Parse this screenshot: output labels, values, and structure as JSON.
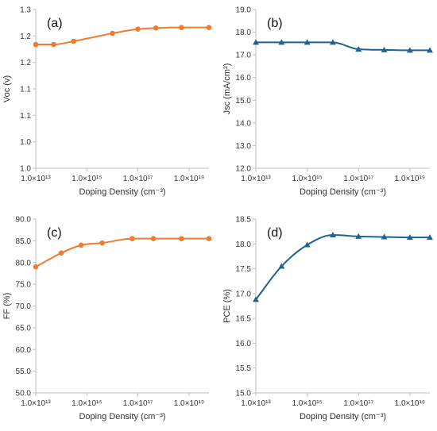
{
  "chart_data": [
    {
      "type": "line",
      "panel_label": "(a)",
      "ylabel": "Voc (v)",
      "xlabel": "Doping Density (cm⁻³)",
      "xscale": "log",
      "xlim": [
        10000000000000.0,
        6e+19
      ],
      "xticks": [
        10000000000000.0,
        1000000000000000.0,
        1e+17,
        1e+19
      ],
      "xtick_labels": [
        "1.0×10¹³",
        "1.0×10¹⁵",
        "1.0×10¹⁷",
        "1.0×10¹⁹"
      ],
      "ylim": [
        1.0,
        1.3
      ],
      "yticks": [
        1.0,
        1.05,
        1.1,
        1.15,
        1.2,
        1.25,
        1.3
      ],
      "ytick_labels": [
        "1.0",
        "1.0",
        "1.1",
        "1.1",
        "1.2",
        "1.2",
        "1.3"
      ],
      "marker": "circle",
      "color": "#ED7D31",
      "grid": false,
      "series": [
        {
          "x": [
            10000000000000.0,
            50000000000000.0,
            300000000000000.0,
            1e+16,
            1e+17,
            5e+17,
            5e+18,
            6e+19
          ],
          "y": [
            1.234,
            1.234,
            1.24,
            1.255,
            1.263,
            1.265,
            1.266,
            1.266
          ]
        }
      ]
    },
    {
      "type": "line",
      "panel_label": "(b)",
      "ylabel": "Jsc (mA/cm²)",
      "xlabel": "Doping Density (cm⁻³)",
      "xscale": "log",
      "xlim": [
        10000000000000.0,
        6e+19
      ],
      "xticks": [
        10000000000000.0,
        1000000000000000.0,
        1e+17,
        1e+19
      ],
      "xtick_labels": [
        "1.0×10¹³",
        "1.0×10¹⁵",
        "1.0×10¹⁷",
        "1.0×10¹⁹"
      ],
      "ylim": [
        12.0,
        19.0
      ],
      "yticks": [
        12,
        13,
        14,
        15,
        16,
        17,
        18,
        19
      ],
      "ytick_labels": [
        "12.0",
        "13.0",
        "14.0",
        "15.0",
        "16.0",
        "17.0",
        "18.0",
        "19.0"
      ],
      "marker": "triangle",
      "color": "#1F6391",
      "grid": false,
      "series": [
        {
          "x": [
            10000000000000.0,
            100000000000000.0,
            1000000000000000.0,
            1e+16,
            1e+17,
            1e+18,
            1e+19,
            6e+19
          ],
          "y": [
            17.55,
            17.55,
            17.55,
            17.55,
            17.25,
            17.22,
            17.2,
            17.2
          ]
        }
      ]
    },
    {
      "type": "line",
      "panel_label": "(c)",
      "ylabel": "FF (%)",
      "xlabel": "Doping Density (cm⁻³)",
      "xscale": "log",
      "xlim": [
        10000000000000.0,
        6e+19
      ],
      "xticks": [
        10000000000000.0,
        1000000000000000.0,
        1e+17,
        1e+19
      ],
      "xtick_labels": [
        "1.0×10¹³",
        "1.0×10¹⁵",
        "1.0×10¹⁷",
        "1.0×10¹⁹"
      ],
      "ylim": [
        50,
        90
      ],
      "yticks": [
        50,
        55,
        60,
        65,
        70,
        75,
        80,
        85,
        90
      ],
      "ytick_labels": [
        "50.0",
        "55.0",
        "60.0",
        "65.0",
        "70.0",
        "75.0",
        "80.0",
        "85.0",
        "90.0"
      ],
      "marker": "circle",
      "color": "#ED7D31",
      "grid": false,
      "series": [
        {
          "x": [
            10000000000000.0,
            100000000000000.0,
            600000000000000.0,
            4000000000000000.0,
            6e+16,
            4e+17,
            5e+18,
            6e+19
          ],
          "y": [
            79.0,
            82.2,
            84.0,
            84.5,
            85.5,
            85.5,
            85.5,
            85.5
          ]
        }
      ]
    },
    {
      "type": "line",
      "panel_label": "(d)",
      "ylabel": "PCE (%)",
      "xlabel": "Doping Density (cm⁻³)",
      "xscale": "log",
      "xlim": [
        10000000000000.0,
        6e+19
      ],
      "xticks": [
        10000000000000.0,
        1000000000000000.0,
        1e+17,
        1e+19
      ],
      "xtick_labels": [
        "1.0×10¹³",
        "1.0×10¹⁵",
        "1.0×10¹⁷",
        "1.0×10¹⁹"
      ],
      "ylim": [
        15.0,
        18.5
      ],
      "yticks": [
        15.0,
        15.5,
        16.0,
        16.5,
        17.0,
        17.5,
        18.0,
        18.5
      ],
      "ytick_labels": [
        "15.0",
        "15.5",
        "16.0",
        "16.5",
        "17.0",
        "17.5",
        "18.0",
        "18.5"
      ],
      "marker": "triangle",
      "color": "#1F6391",
      "grid": false,
      "series": [
        {
          "x": [
            10000000000000.0,
            100000000000000.0,
            1000000000000000.0,
            1e+16,
            1e+17,
            1e+18,
            1e+19,
            6e+19
          ],
          "y": [
            16.88,
            17.55,
            17.98,
            18.18,
            18.15,
            18.14,
            18.13,
            18.13
          ]
        }
      ]
    }
  ]
}
